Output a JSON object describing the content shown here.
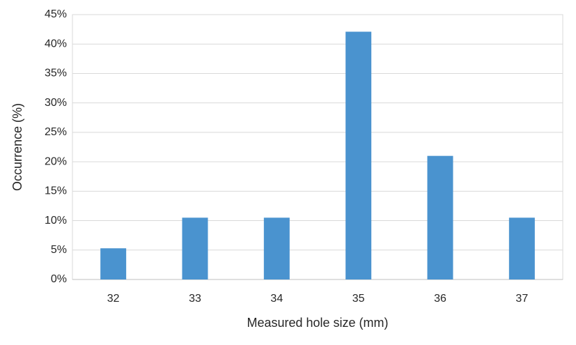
{
  "chart_data": {
    "type": "bar",
    "x_label": "Measured hole size (mm)",
    "y_label": "Occurrence (%)",
    "categories": [
      "32",
      "33",
      "34",
      "35",
      "36",
      "37"
    ],
    "values": [
      5.3,
      10.5,
      10.5,
      42.1,
      21,
      10.5
    ],
    "color": "#4a93cf",
    "ylim": [
      0,
      45
    ],
    "yticks": [
      {
        "value": 0,
        "label": "0%"
      },
      {
        "value": 5,
        "label": "5%"
      },
      {
        "value": 10,
        "label": "10%"
      },
      {
        "value": 15,
        "label": "15%"
      },
      {
        "value": 20,
        "label": "20%"
      },
      {
        "value": 25,
        "label": "25%"
      },
      {
        "value": 30,
        "label": "30%"
      },
      {
        "value": 35,
        "label": "35%"
      },
      {
        "value": 40,
        "label": "40%"
      },
      {
        "value": 45,
        "label": "45%"
      }
    ],
    "grid": true
  }
}
